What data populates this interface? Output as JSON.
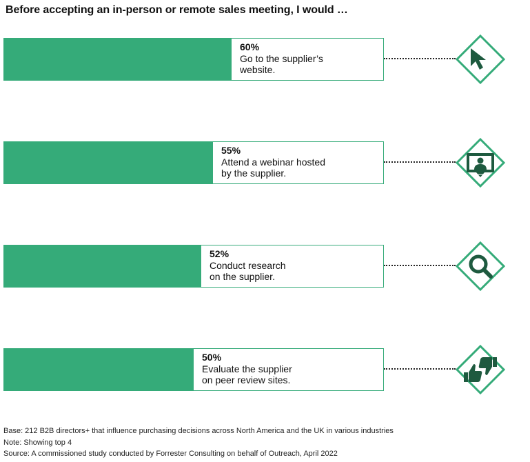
{
  "chart_data": {
    "type": "bar",
    "title": "Before accepting an in-person or remote sales meeting, I would …",
    "categories": [
      "Go to the supplier’s website.",
      "Attend a webinar hosted by the supplier.",
      "Conduct research on the supplier.",
      "Evaluate the supplier on peer review sites."
    ],
    "values": [
      60,
      55,
      52,
      50
    ],
    "value_labels": [
      "60%",
      "55%",
      "52%",
      "50%"
    ],
    "label_lines": [
      "Go to the supplier’s\nwebsite.",
      "Attend a webinar hosted\nby the supplier.",
      "Conduct research\non the supplier.",
      "Evaluate the supplier\non peer review sites."
    ],
    "icons": [
      "cursor-arrow-icon",
      "webinar-monitor-icon",
      "magnifier-icon",
      "thumbs-up-down-icon"
    ],
    "ylim": [
      0,
      100
    ],
    "colors": {
      "bar": "#35ab79",
      "icon": "#1e5a3f"
    }
  },
  "footnotes": {
    "base": "Base: 212 B2B directors+ that influence purchasing decisions across North America and the UK in various industries",
    "note": "Note: Showing top 4",
    "source": "Source: A commissioned study conducted by Forrester Consulting on behalf of Outreach, April 2022"
  }
}
